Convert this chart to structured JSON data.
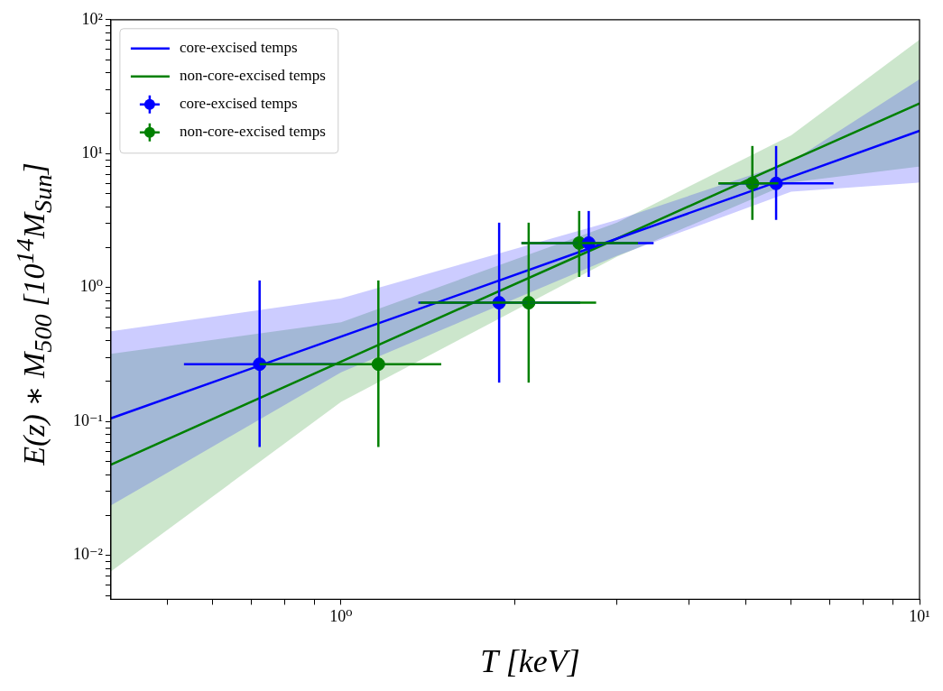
{
  "chart_data": {
    "type": "scatter",
    "xlabel": "T [keV]",
    "ylabel": "E(z) ∗ M$_{500}$ [10$^{14}$M$_{Sun}$]",
    "log": "xy",
    "grid": false,
    "legend": "top left",
    "marker": "circle",
    "xlim": [
      0.4,
      10
    ],
    "ylim": [
      0.0047,
      100
    ],
    "xticks": [
      {
        "value": 0.5,
        "label": null
      },
      {
        "value": 0.6,
        "label": null
      },
      {
        "value": 0.7,
        "label": null
      },
      {
        "value": 0.8,
        "label": null
      },
      {
        "value": 0.9,
        "label": null
      },
      {
        "value": 1,
        "label": "10⁰"
      },
      {
        "value": 2,
        "label": null
      },
      {
        "value": 3,
        "label": null
      },
      {
        "value": 4,
        "label": null
      },
      {
        "value": 5,
        "label": null
      },
      {
        "value": 6,
        "label": null
      },
      {
        "value": 7,
        "label": null
      },
      {
        "value": 8,
        "label": null
      },
      {
        "value": 9,
        "label": null
      },
      {
        "value": 10,
        "label": "10¹"
      }
    ],
    "yticks": [
      {
        "value": 0.005,
        "label": null
      },
      {
        "value": 0.006,
        "label": null
      },
      {
        "value": 0.007,
        "label": null
      },
      {
        "value": 0.008,
        "label": null
      },
      {
        "value": 0.009,
        "label": null
      },
      {
        "value": 0.01,
        "label": "10⁻²"
      },
      {
        "value": 0.02,
        "label": null
      },
      {
        "value": 0.03,
        "label": null
      },
      {
        "value": 0.04,
        "label": null
      },
      {
        "value": 0.05,
        "label": null
      },
      {
        "value": 0.06,
        "label": null
      },
      {
        "value": 0.07,
        "label": null
      },
      {
        "value": 0.08,
        "label": null
      },
      {
        "value": 0.09,
        "label": null
      },
      {
        "value": 0.1,
        "label": "10⁻¹"
      },
      {
        "value": 0.2,
        "label": null
      },
      {
        "value": 0.3,
        "label": null
      },
      {
        "value": 0.4,
        "label": null
      },
      {
        "value": 0.5,
        "label": null
      },
      {
        "value": 0.6,
        "label": null
      },
      {
        "value": 0.7,
        "label": null
      },
      {
        "value": 0.8,
        "label": null
      },
      {
        "value": 0.9,
        "label": null
      },
      {
        "value": 1,
        "label": "10⁰"
      },
      {
        "value": 2,
        "label": null
      },
      {
        "value": 3,
        "label": null
      },
      {
        "value": 4,
        "label": null
      },
      {
        "value": 5,
        "label": null
      },
      {
        "value": 6,
        "label": null
      },
      {
        "value": 7,
        "label": null
      },
      {
        "value": 8,
        "label": null
      },
      {
        "value": 9,
        "label": null
      },
      {
        "value": 10,
        "label": "10¹"
      },
      {
        "value": 20,
        "label": null
      },
      {
        "value": 30,
        "label": null
      },
      {
        "value": 40,
        "label": null
      },
      {
        "value": 50,
        "label": null
      },
      {
        "value": 60,
        "label": null
      },
      {
        "value": 70,
        "label": null
      },
      {
        "value": 80,
        "label": null
      },
      {
        "value": 90,
        "label": null
      },
      {
        "value": 100,
        "label": "10²"
      }
    ],
    "series": [
      {
        "type": "line",
        "name": "core-excised temps",
        "color": "#0000ff",
        "line_style": "solid",
        "marker": "none",
        "x": [
          0.4,
          1,
          3,
          6,
          10
        ],
        "values": [
          0.1055,
          0.43,
          2.32,
          6.7,
          14.8
        ],
        "lower": [
          0.0236,
          0.233,
          1.73,
          5.2,
          6.08
        ],
        "upper": [
          0.472,
          0.83,
          3.2,
          8.7,
          35.9
        ]
      },
      {
        "type": "line",
        "name": "non-core-excised temps",
        "color": "#008000",
        "line_style": "solid",
        "marker": "none",
        "x": [
          0.4,
          1,
          3,
          6,
          10
        ],
        "values": [
          0.0476,
          0.28,
          2.32,
          8.9,
          23.7
        ],
        "lower": [
          0.0076,
          0.14,
          1.7,
          6.1,
          8.0
        ],
        "upper": [
          0.32,
          0.55,
          3.05,
          13.7,
          71
        ]
      },
      {
        "type": "scatter",
        "name": "core-excised temps",
        "color": "#0000ff",
        "x": [
          0.723,
          1.876,
          2.68,
          5.65
        ],
        "values": [
          0.268,
          0.77,
          2.15,
          5.99
        ],
        "errors": [
          [
            0.0645,
            1.13
          ],
          [
            0.195,
            3.05
          ],
          [
            1.2,
            3.73
          ],
          [
            3.2,
            11.4
          ]
        ],
        "xerrors": [
          [
            0.535,
            0.978
          ],
          [
            1.36,
            2.59
          ],
          [
            2.05,
            3.47
          ],
          [
            4.49,
            7.1
          ]
        ]
      },
      {
        "type": "scatter",
        "name": "non-core-excised temps",
        "color": "#008000",
        "x": [
          1.16,
          2.11,
          2.58,
          5.14
        ],
        "values": [
          0.268,
          0.77,
          2.15,
          5.99
        ],
        "errors": [
          [
            0.0645,
            1.13
          ],
          [
            0.195,
            3.05
          ],
          [
            1.2,
            3.73
          ],
          [
            3.2,
            11.4
          ]
        ],
        "xerrors": [
          [
            0.723,
            1.49
          ],
          [
            1.37,
            2.76
          ],
          [
            2.05,
            3.26
          ],
          [
            4.49,
            5.7
          ]
        ]
      }
    ]
  }
}
